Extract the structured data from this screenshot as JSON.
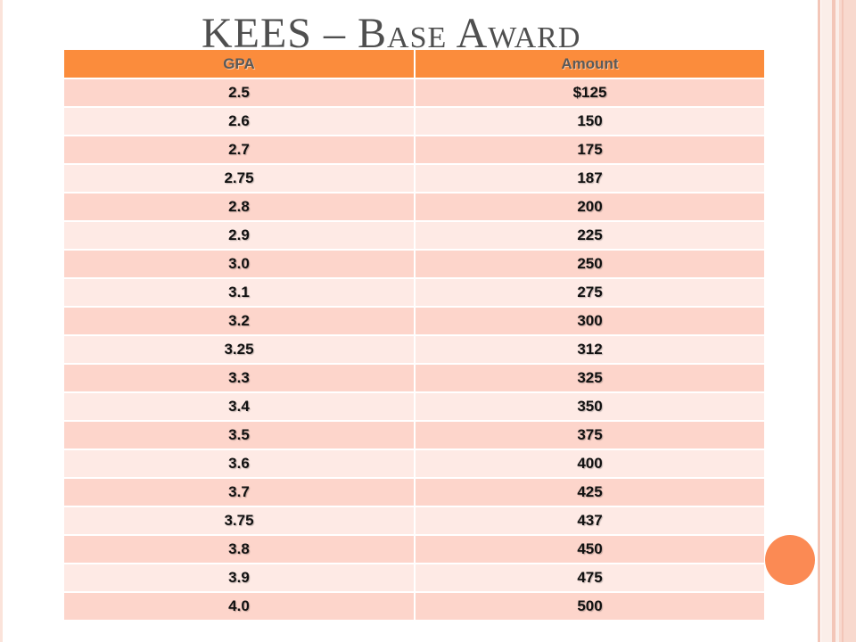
{
  "slide": {
    "title": "KEES – Base Award"
  },
  "table": {
    "headers": [
      "GPA",
      "Amount"
    ],
    "rows": [
      [
        "2.5",
        "$125"
      ],
      [
        "2.6",
        "150"
      ],
      [
        "2.7",
        "175"
      ],
      [
        "2.75",
        "187"
      ],
      [
        "2.8",
        "200"
      ],
      [
        "2.9",
        "225"
      ],
      [
        "3.0",
        "250"
      ],
      [
        "3.1",
        "275"
      ],
      [
        "3.2",
        "300"
      ],
      [
        "3.25",
        "312"
      ],
      [
        "3.3",
        "325"
      ],
      [
        "3.4",
        "350"
      ],
      [
        "3.5",
        "375"
      ],
      [
        "3.6",
        "400"
      ],
      [
        "3.7",
        "425"
      ],
      [
        "3.75",
        "437"
      ],
      [
        "3.8",
        "450"
      ],
      [
        "3.9",
        "475"
      ],
      [
        "4.0",
        "500"
      ]
    ]
  },
  "colors": {
    "header": "#fb8c3c",
    "row_odd": "#fdd5cb",
    "row_even": "#feeae5",
    "accent_circle": "#fb8a54"
  }
}
